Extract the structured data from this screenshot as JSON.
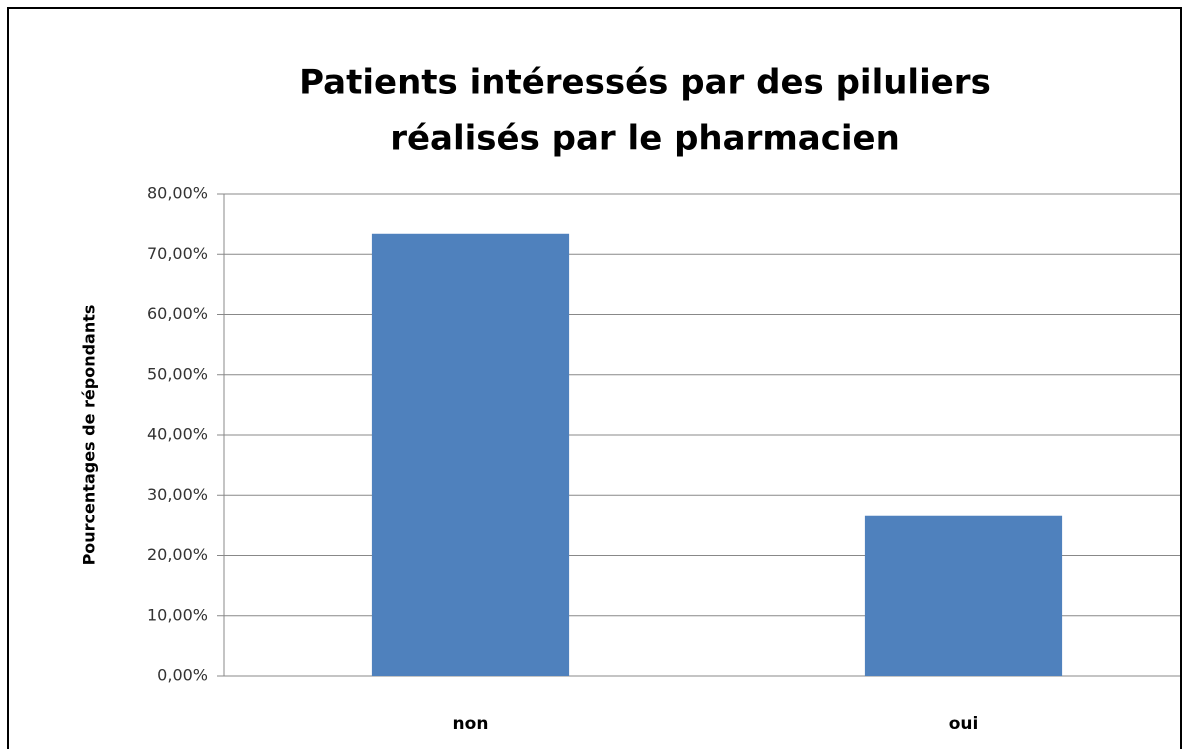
{
  "chart_data": {
    "type": "bar",
    "title": [
      "Patients intéressés par des piluliers",
      "réalisés par le pharmacien"
    ],
    "y_label": "Pourcentages de répondants",
    "categories": [
      "non",
      "oui"
    ],
    "values": [
      73.4,
      26.6
    ],
    "color": "#4f81bd",
    "ylim": [
      0,
      80
    ],
    "yticks": [
      {
        "value": 0,
        "label": "0,00%"
      },
      {
        "value": 10,
        "label": "10,00%"
      },
      {
        "value": 20,
        "label": "20,00%"
      },
      {
        "value": 30,
        "label": "30,00%"
      },
      {
        "value": 40,
        "label": "40,00%"
      },
      {
        "value": 50,
        "label": "50,00%"
      },
      {
        "value": 60,
        "label": "60,00%"
      },
      {
        "value": 70,
        "label": "70,00%"
      },
      {
        "value": 80,
        "label": "80,00%"
      }
    ],
    "grid": true
  }
}
